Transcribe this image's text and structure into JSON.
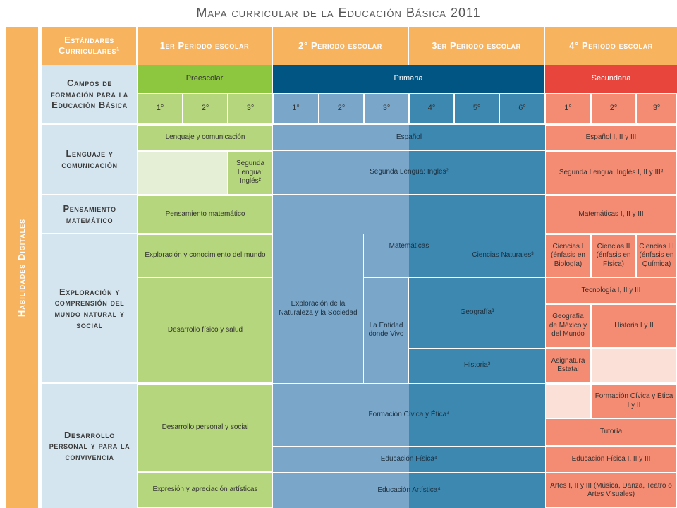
{
  "title": "Mapa curricular de la Educación Básica 2011",
  "side_label": "Habilidades Digitales",
  "header": {
    "estandares": "Estándares Curriculares¹",
    "p1": "1er Periodo escolar",
    "p2": "2° Periodo escolar",
    "p3": "3er Periodo escolar",
    "p4": "4° Periodo escolar"
  },
  "levels": {
    "preescolar": "Preescolar",
    "primaria": "Primaria",
    "secundaria": "Secundaria"
  },
  "campos_title": "Campos de formación para la Educación Básica",
  "grades": {
    "pre": [
      "1°",
      "2°",
      "3°"
    ],
    "pri": [
      "1°",
      "2°",
      "3°",
      "4°",
      "5°",
      "6°"
    ],
    "sec": [
      "1°",
      "2°",
      "3°"
    ]
  },
  "campos": {
    "lenguaje": "Lenguaje y comunicación",
    "pensamiento": "Pensamiento matemático",
    "exploracion": "Exploración y comprensión del mundo natural y social",
    "desarrollo": "Desarrollo personal y para la convivencia"
  },
  "cells": {
    "pre_lenguaje": "Lenguaje y comunicación",
    "pre_segunda": "Segunda Lengua: Inglés²",
    "pre_pensamiento": "Pensamiento matemático",
    "pre_exploracion": "Exploración y conocimiento del mundo",
    "pre_desarrollo_fisico": "Desarrollo físico y salud",
    "pre_desarrollo_personal": "Desarrollo personal y social",
    "pre_expresion": "Expresión y apreciación artísticas",
    "pri_espanol": "Español",
    "pri_segunda": "Segunda Lengua: Inglés²",
    "pri_matematicas": "Matemáticas",
    "pri_exploracion_nat": "Exploración de la Naturaleza y la Sociedad",
    "pri_entidad": "La Entidad donde Vivo",
    "pri_ciencias": "Ciencias Naturales³",
    "pri_geografia": "Geografía³",
    "pri_historia": "Historia³",
    "pri_formacion": "Formación Cívica y Ética⁴",
    "pri_ed_fisica": "Educación Física⁴",
    "pri_ed_artistica": "Educación Artística⁴",
    "sec_espanol": "Español I, II y III",
    "sec_segunda": "Segunda Lengua: Inglés I, II y III²",
    "sec_matematicas": "Matemáticas I, II y III",
    "sec_ciencias1": "Ciencias I (énfasis en Biología)",
    "sec_ciencias2": "Ciencias II (énfasis en Física)",
    "sec_ciencias3": "Ciencias III (énfasis en Química)",
    "sec_tecnologia": "Tecnología I, II y III",
    "sec_geografia": "Geografía de México y del Mundo",
    "sec_historia": "Historia I y II",
    "sec_asignatura": "Asignatura Estatal",
    "sec_formacion": "Formación Cívica y Ética I y II",
    "sec_tutoria": "Tutoría",
    "sec_ed_fisica": "Educación Física I, II y III",
    "sec_artes": "Artes I, II y III (Música, Danza, Teatro o Artes Visuales)"
  },
  "colors": {
    "orange_header": "#f7b35e",
    "preescolar_green": "#8dc63f",
    "preescolar_cell": "#b5d67c",
    "preescolar_light": "#e4efd6",
    "primaria_blue": "#005582",
    "primaria_light": "#7aa6c9",
    "primaria_dark": "#3d88b0",
    "secundaria_red": "#e8453c",
    "secundaria_cell": "#f48c74",
    "secundaria_light": "#fbe0d8",
    "campos_bg": "#d4e5ef"
  }
}
